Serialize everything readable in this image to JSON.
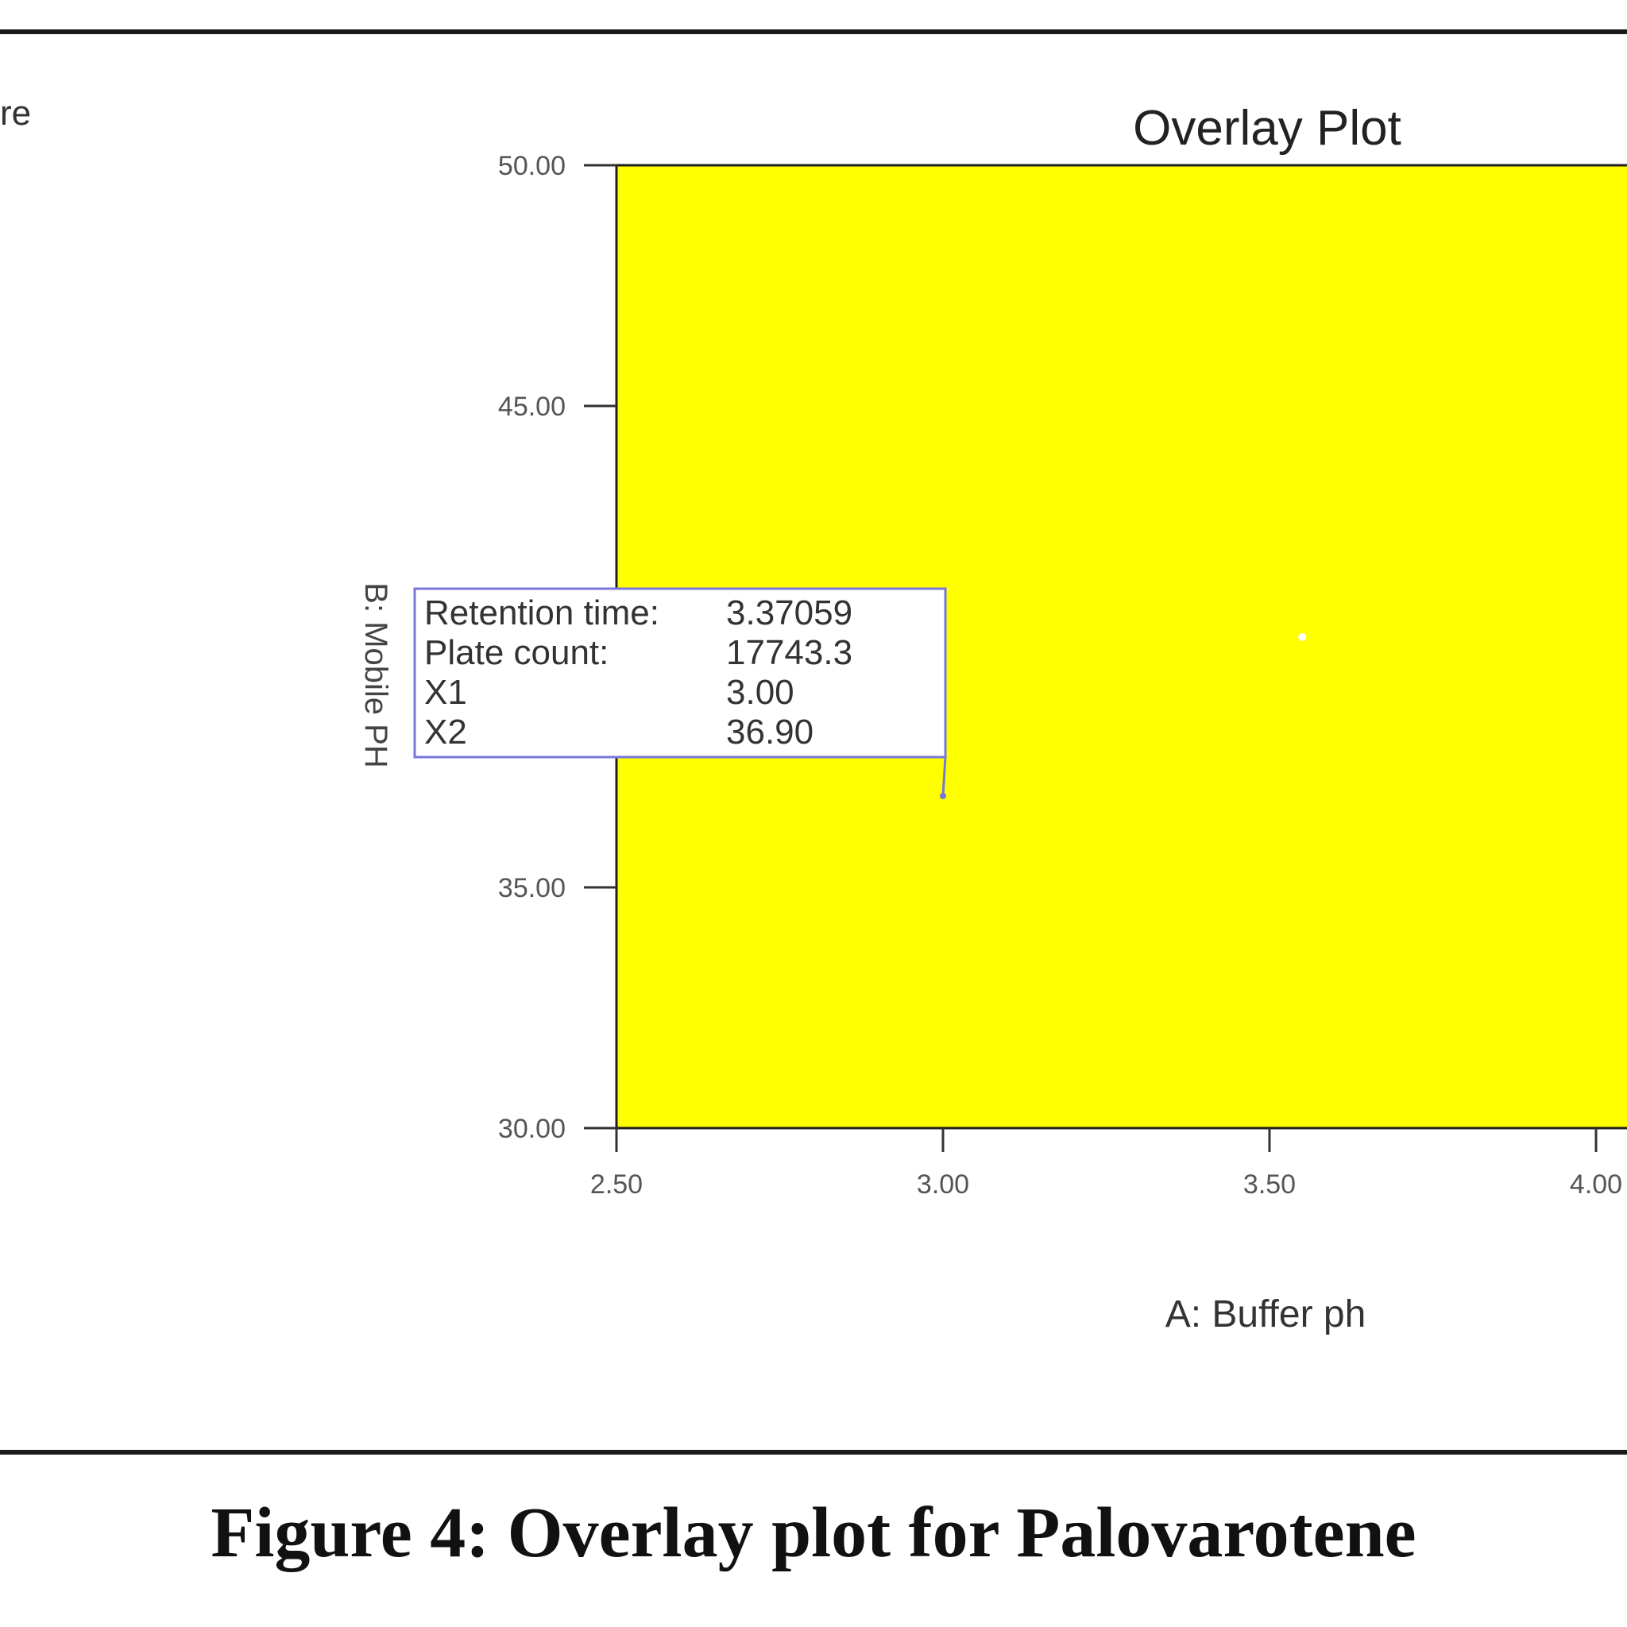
{
  "chart_data": {
    "type": "area",
    "title": "Overlay Plot",
    "xlabel": "A: Buffer ph",
    "ylabel": "B: Mobile PH",
    "xlim": [
      2.5,
      4.05
    ],
    "ylim": [
      30.0,
      50.0
    ],
    "x_ticks": [
      "2.50",
      "3.00",
      "3.50",
      "4.00"
    ],
    "y_ticks": [
      "30.00",
      "35.00",
      "45.00",
      "50.00"
    ],
    "region": {
      "x": [
        2.5,
        4.05
      ],
      "y": [
        30.0,
        50.0
      ],
      "color": "#ffff00"
    },
    "selected_point": {
      "x": 3.0,
      "y": 36.9
    },
    "design_point": {
      "x": 3.55,
      "y": 40.2
    },
    "flag": {
      "rows": [
        {
          "label": "Retention time:",
          "value": "3.37059"
        },
        {
          "label": "Plate count:",
          "value": "17743.3"
        },
        {
          "label": "X1",
          "value": "3.00"
        },
        {
          "label": "X2",
          "value": "36.90"
        }
      ]
    }
  },
  "corner_fragment": "re",
  "caption": "Figure 4: Overlay plot for Palovarotene",
  "colors": {
    "region": "#ffff00",
    "frame": "#1f1f1f",
    "flag_border": "#7777dd"
  }
}
